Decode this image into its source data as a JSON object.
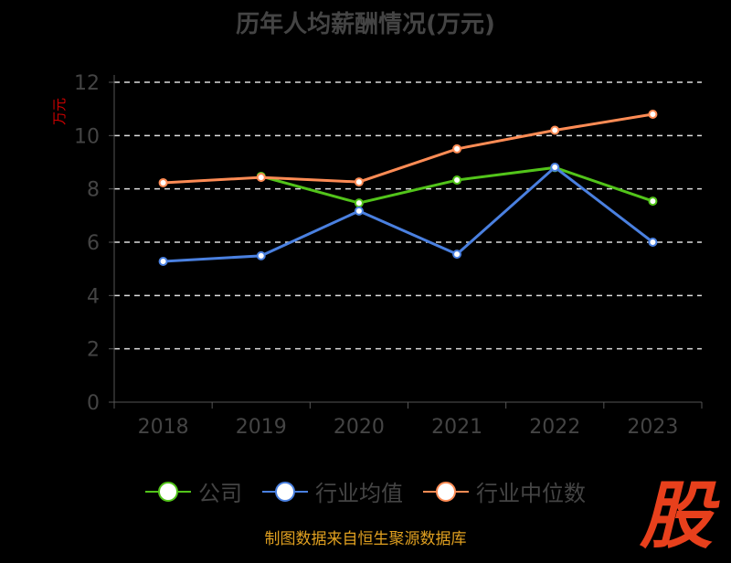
{
  "chart_data": {
    "type": "line",
    "title": "历年人均薪酬情况(万元)",
    "ylabel": "万元",
    "xlabel": "",
    "ylim": [
      0,
      12
    ],
    "yticks": [
      0,
      2,
      4,
      6,
      8,
      10,
      12
    ],
    "categories": [
      "2018",
      "2019",
      "2020",
      "2021",
      "2022",
      "2023"
    ],
    "grid": true,
    "legend_position": "bottom",
    "series": [
      {
        "name": "公司",
        "color": "#52c41a",
        "values": [
          null,
          8.47,
          7.47,
          8.33,
          8.8,
          7.54
        ]
      },
      {
        "name": "行业均值",
        "color": "#4a80e0",
        "values": [
          5.28,
          5.49,
          7.17,
          5.55,
          8.81,
          6.0
        ]
      },
      {
        "name": "行业中位数",
        "color": "#ff8c55",
        "values": [
          8.23,
          8.43,
          8.26,
          9.5,
          10.2,
          10.8
        ]
      }
    ]
  },
  "source": "制图数据来自恒生聚源数据库",
  "logo_text": "股"
}
